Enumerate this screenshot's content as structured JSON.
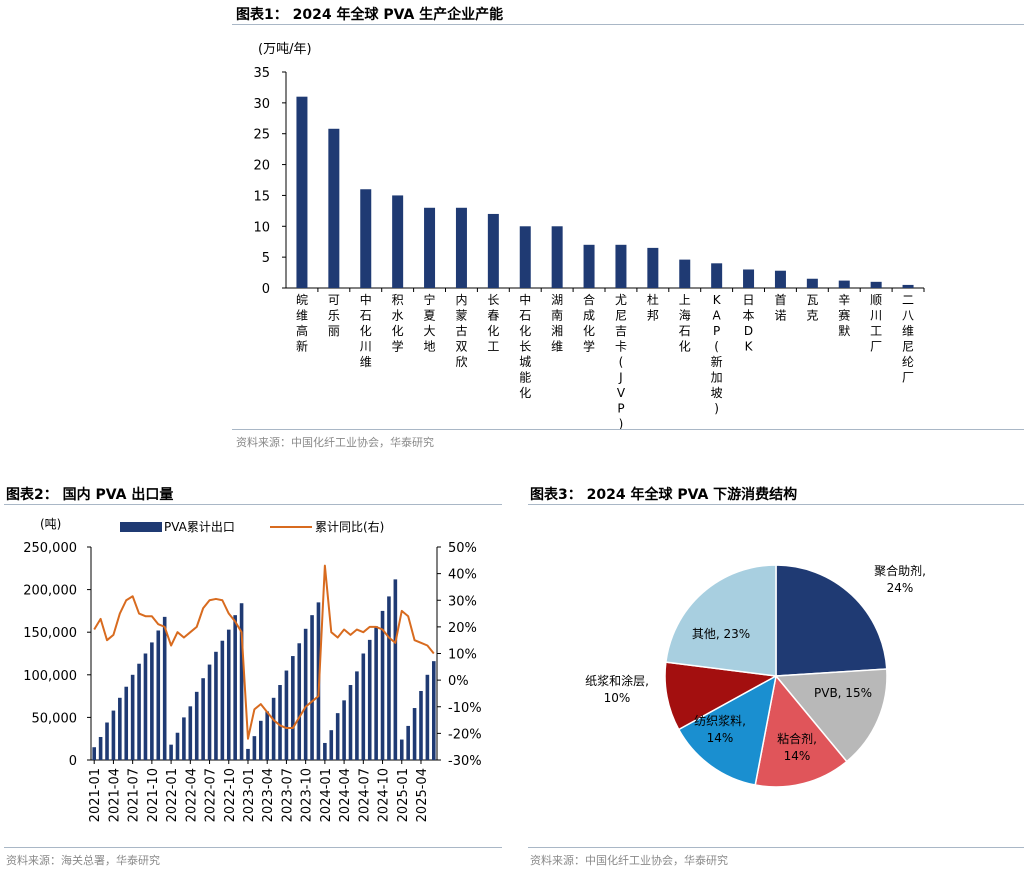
{
  "figure1": {
    "title": "图表1：  2024 年全球 PVA 生产企业产能",
    "source": "资料来源：中国化纤工业协会，华泰研究"
  },
  "figure2": {
    "title": "图表2：  国内 PVA 出口量",
    "source": "资料来源：海关总署，华泰研究"
  },
  "figure3": {
    "title": "图表3：  2024 年全球 PVA 下游消费结构",
    "source": "资料来源：中国化纤工业协会，华泰研究"
  },
  "chart_data": [
    {
      "type": "bar",
      "title": "2024 年全球 PVA 生产企业产能",
      "ylabel": "(万吨/年)",
      "ylim": [
        0,
        35
      ],
      "yticks": [
        0,
        5,
        10,
        15,
        20,
        25,
        30,
        35
      ],
      "categories": [
        "皖维高新",
        "可乐丽",
        "中石化川维",
        "积水化学",
        "宁夏大地",
        "内蒙古双欣",
        "长春化工",
        "中石化长城能化",
        "湖南湘维",
        "合成化学",
        "尤尼吉卡(JVP)",
        "杜邦",
        "上海石化",
        "KAP(新加坡)",
        "日本DK",
        "首诺",
        "瓦克",
        "辛赛默",
        "顺川工厂",
        "二八维尼纶厂"
      ],
      "values": [
        31,
        25.8,
        16,
        15,
        13,
        13,
        12,
        10,
        10,
        7,
        7,
        6.5,
        4.6,
        4,
        3,
        2.8,
        1.5,
        1.2,
        1,
        0.5
      ],
      "color": "#1f3a73"
    },
    {
      "type": "bar+line",
      "title": "国内 PVA 出口量",
      "ylabel": "(吨)",
      "ylim": [
        0,
        250000
      ],
      "yticks": [
        "0",
        "50,000",
        "100,000",
        "150,000",
        "200,000",
        "250,000"
      ],
      "y2lim": [
        -30,
        50
      ],
      "y2ticks": [
        "-30%",
        "-20%",
        "-10%",
        "0%",
        "10%",
        "20%",
        "30%",
        "40%",
        "50%"
      ],
      "xticks": [
        "2021-01",
        "2021-04",
        "2021-07",
        "2021-10",
        "2022-01",
        "2022-04",
        "2022-07",
        "2022-10",
        "2023-01",
        "2023-04",
        "2023-07",
        "2023-10",
        "2024-01",
        "2024-04",
        "2024-07",
        "2024-10",
        "2025-01",
        "2025-04"
      ],
      "series": [
        {
          "name": "PVA累计出口",
          "kind": "bar",
          "color": "#1f3a73",
          "values": [
            15000,
            27000,
            44000,
            58000,
            73000,
            86000,
            100000,
            113000,
            125000,
            138000,
            152000,
            168000,
            18000,
            32000,
            50000,
            63000,
            80000,
            96000,
            112000,
            127000,
            140000,
            153000,
            170000,
            184000,
            13000,
            28000,
            46000,
            57000,
            73000,
            88000,
            105000,
            122000,
            137000,
            154000,
            170000,
            185000,
            20000,
            35000,
            55000,
            70000,
            88000,
            104000,
            125000,
            141000,
            157000,
            175000,
            192000,
            212000,
            24000,
            40000,
            61000,
            81000,
            100000,
            116000
          ]
        },
        {
          "name": "累计同比(右)",
          "kind": "line",
          "color": "#d86b1f",
          "values": [
            19,
            23,
            15,
            17,
            25,
            30,
            31.5,
            25,
            24,
            24,
            21,
            20,
            13,
            18,
            16,
            18,
            20,
            27,
            30,
            30.5,
            30,
            25,
            22,
            18,
            -22,
            -11,
            -9,
            -12,
            -15,
            -17,
            -18,
            -18,
            -14,
            -10,
            -8,
            -6,
            43,
            18,
            16,
            19,
            17,
            19,
            18,
            20,
            20,
            19,
            16,
            14,
            26,
            24,
            15,
            14,
            13,
            10
          ]
        }
      ],
      "legend": "top"
    },
    {
      "type": "pie",
      "title": "2024 年全球 PVA 下游消费结构",
      "slices": [
        {
          "label": "聚合助剂,",
          "pct": "24%",
          "value": 24,
          "color": "#1f3a73"
        },
        {
          "label": "PVB,",
          "pct": "15%",
          "value": 15,
          "color": "#b8b8b8"
        },
        {
          "label": "粘合剂,",
          "pct": "14%",
          "value": 14,
          "color": "#e0555a"
        },
        {
          "label": "纺织浆料,",
          "pct": "14%",
          "value": 14,
          "color": "#1a8fd0"
        },
        {
          "label": "纸浆和涂层,",
          "pct": "10%",
          "value": 10,
          "color": "#a30f0f"
        },
        {
          "label": "其他,",
          "pct": "23%",
          "value": 23,
          "color": "#a8cfe0"
        }
      ]
    }
  ]
}
